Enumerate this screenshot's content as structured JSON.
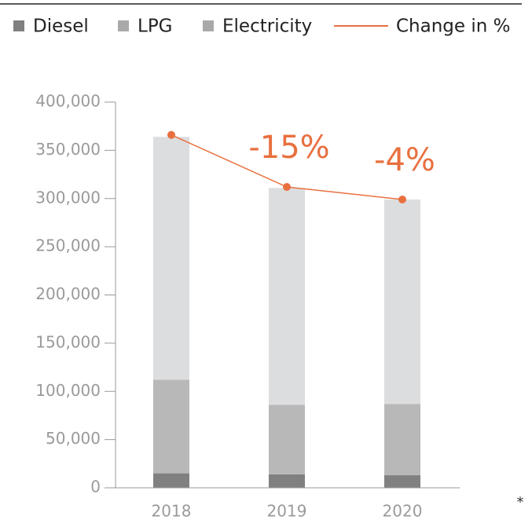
{
  "chart_data": {
    "type": "bar",
    "categories": [
      "2018",
      "2019",
      "2020"
    ],
    "series": [
      {
        "name": "Diesel",
        "color": "#808080",
        "values": [
          15000,
          14000,
          13000
        ]
      },
      {
        "name": "LPG",
        "color": "#b8b8b9",
        "values": [
          97000,
          72000,
          74000
        ]
      },
      {
        "name": "Electricity",
        "color": "#dcdddf",
        "values": [
          252000,
          225000,
          212000
        ]
      }
    ],
    "line": {
      "name": "Change in %",
      "color": "#e8703f",
      "values": [
        366000,
        312000,
        299000
      ]
    },
    "annotations": [
      "-15%",
      "-4%"
    ],
    "footnote": "*",
    "stacked": true,
    "ylim": [
      0,
      400000
    ],
    "yticks": [
      0,
      {
        "value": 50000,
        "label": "50,000"
      },
      {
        "value": 100000,
        "label": "100,000"
      },
      {
        "value": 150000,
        "label": "150,000"
      },
      {
        "value": 200000,
        "label": "200,000"
      },
      {
        "value": 250000,
        "label": "250,000"
      },
      {
        "value": 300000,
        "label": "300,000"
      },
      {
        "value": 350000,
        "label": "350,000"
      },
      {
        "value": 400000,
        "label": "400,000"
      }
    ],
    "legend": "top"
  }
}
